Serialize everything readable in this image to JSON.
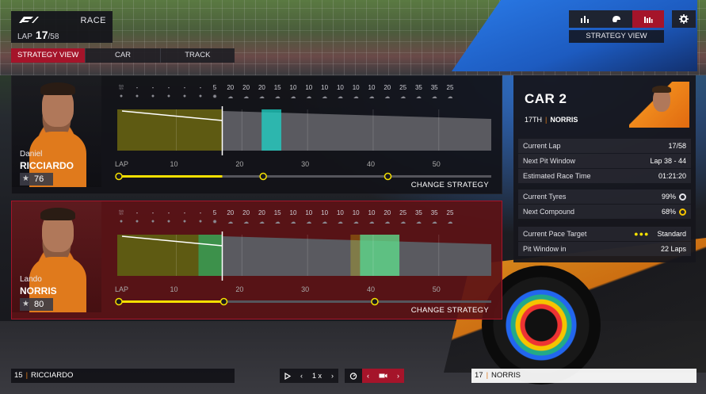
{
  "race": {
    "label": "RACE",
    "lap_label": "LAP",
    "lap_current": "17",
    "lap_total": "/58"
  },
  "tabs": [
    {
      "label": "STRATEGY VIEW",
      "active": true
    },
    {
      "label": "CAR",
      "active": false
    },
    {
      "label": "TRACK",
      "active": false
    }
  ],
  "view_label": "STRATEGY VIEW",
  "weather": {
    "temps": [
      "5",
      "20",
      "20",
      "20",
      "15",
      "10",
      "10",
      "10",
      "10",
      "10",
      "10",
      "20",
      "25",
      "35",
      "35",
      "25"
    ],
    "icons": [
      "sun-icon",
      "cloud-sun-icon",
      "cloud-sun-icon",
      "cloud-sun-icon",
      "cloud-sun-icon",
      "cloud-sun-icon",
      "cloud-sun-icon",
      "cloud-sun-icon",
      "cloud-sun-icon",
      "cloud-sun-icon",
      "cloud-sun-icon",
      "cloud-sun-icon",
      "cloud-sun-icon",
      "cloud-icon",
      "cloud-icon",
      "cloud-sun-icon"
    ]
  },
  "lap_axis": [
    "LAP",
    "10",
    "20",
    "30",
    "40",
    "50"
  ],
  "drivers": [
    {
      "first": "Daniel",
      "last": "RICCIARDO",
      "rating": "76",
      "change_label": "CHANGE STRATEGY",
      "current_lap": 17,
      "stint_marker_laps": [
        23,
        42
      ],
      "pit_window": [
        23,
        26
      ]
    },
    {
      "first": "Lando",
      "last": "NORRIS",
      "rating": "80",
      "change_label": "CHANGE STRATEGY",
      "current_lap": 17,
      "stint_marker_laps": [
        17,
        40
      ],
      "pit_window": [
        38,
        44
      ]
    }
  ],
  "car_info": {
    "title": "CAR 2",
    "position": "17TH",
    "driver": "NORRIS",
    "rows": [
      {
        "label": "Current Lap",
        "value": "17/58"
      },
      {
        "label": "Next Pit Window",
        "value": "Lap 38 - 44"
      },
      {
        "label": "Estimated Race Time",
        "value": "01:21:20"
      },
      {
        "label": "Current Tyres",
        "value": "99%"
      },
      {
        "label": "Next Compound",
        "value": "68%"
      },
      {
        "label": "Current Pace Target",
        "value": "Standard"
      },
      {
        "label": "Pit Window in",
        "value": "22 Laps"
      }
    ]
  },
  "bottom": {
    "left_pos": "15",
    "left_name": "RICCIARDO",
    "right_pos": "17",
    "right_name": "NORRIS",
    "speed": "1 x"
  },
  "colors": {
    "accent": "#a5142a",
    "orange": "#e07a1c",
    "yellow": "#f5e000",
    "teal": "#1fd6c8",
    "green": "#22c07a"
  }
}
